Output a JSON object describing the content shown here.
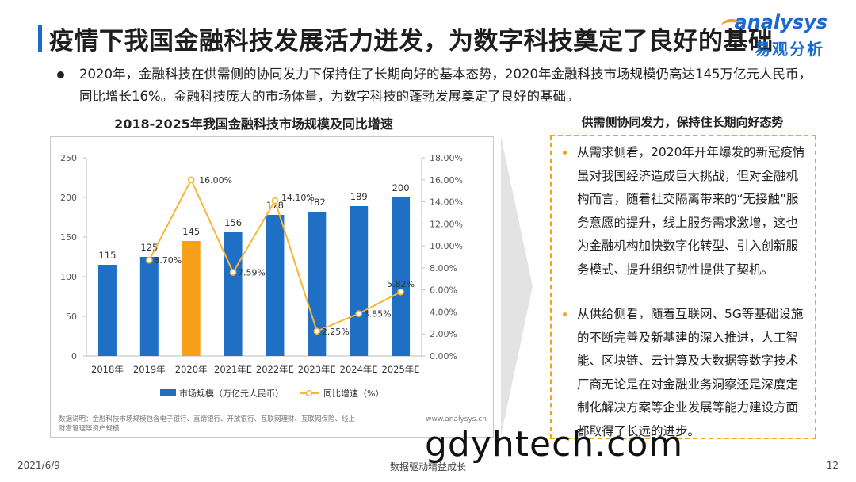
{
  "header": {
    "title": "疫情下我国金融科技发展活力迸发，为数字科技奠定了良好的基础",
    "brand_en": "analysys",
    "brand_cn": "易观分析"
  },
  "intro": {
    "text": "2020年，金融科技在供需侧的协同发力下保持住了长期向好的基本态势，2020年金融科技市场规模仍高达145万亿元人民币，同比增长16%。金融科技庞大的市场体量，为数字科技的蓬勃发展奠定了良好的基础。"
  },
  "chart_data": {
    "type": "bar",
    "title": "2018-2025年我国金融科技市场规模及同比增速",
    "categories": [
      "2018年",
      "2019年",
      "2020年",
      "2021年E",
      "2022年E",
      "2023年E",
      "2024年E",
      "2025年E"
    ],
    "series": [
      {
        "name": "市场规模（万亿元人民币）",
        "type": "bar",
        "axis": "left",
        "values": [
          115,
          125,
          145,
          156,
          178,
          182,
          189,
          200
        ],
        "labels": [
          "115",
          "125",
          "145",
          "156",
          "178",
          "182",
          "189",
          "200"
        ],
        "highlight_index": 2
      },
      {
        "name": "同比增速（%）",
        "type": "line",
        "axis": "right",
        "values": [
          null,
          8.7,
          16.0,
          7.59,
          14.1,
          2.25,
          3.85,
          5.82
        ],
        "labels": [
          "",
          "8.70%",
          "16.00%",
          "7.59%",
          "14.10%",
          "2.25%",
          "3.85%",
          "5.82%"
        ]
      }
    ],
    "ylim_left": [
      0,
      250
    ],
    "yticks_left": [
      "0",
      "50",
      "100",
      "150",
      "200",
      "250"
    ],
    "ylim_right": [
      0,
      18
    ],
    "yticks_right": [
      "0.00%",
      "2.00%",
      "4.00%",
      "6.00%",
      "8.00%",
      "10.00%",
      "12.00%",
      "14.00%",
      "16.00%",
      "18.00%"
    ],
    "grid": false,
    "legend": "bottom",
    "note": "数据说明：金融科技市场规模包含电子银行、直销银行、开放银行、互联网理财、互联网保险、线上财富管理等资产规模",
    "source": "www.analysys.cn",
    "colors": {
      "bar": "#1f6fc5",
      "bar_highlight": "#f7a019",
      "line": "#f7b733",
      "marker_fill": "#ffffff"
    }
  },
  "side_panel": {
    "title": "供需侧协同发力，保持住长期向好态势",
    "items": [
      {
        "text": "从需求侧看，2020年开年爆发的新冠疫情虽对我国经济造成巨大挑战，但对金融机构而言，随着社交隔离带来的“无接触”服务意愿的提升，线上服务需求激增，这也为金融机构加快数字化转型、引入创新服务模式、提升组织韧性提供了契机。"
      },
      {
        "text": "从供给侧看，随着互联网、5G等基础设施的不断完善及新基建的深入推进，人工智能、区块链、云计算及大数据等数字技术厂商无论是在对金融业务洞察还是深度定制化解决方案等企业发展等能力建设方面都取得了长远的进步。"
      }
    ]
  },
  "footer": {
    "date": "2021/6/9",
    "slogan": "数据驱动精益成长",
    "page": "12"
  },
  "overlay": {
    "watermark": "gdyhtech.com"
  }
}
